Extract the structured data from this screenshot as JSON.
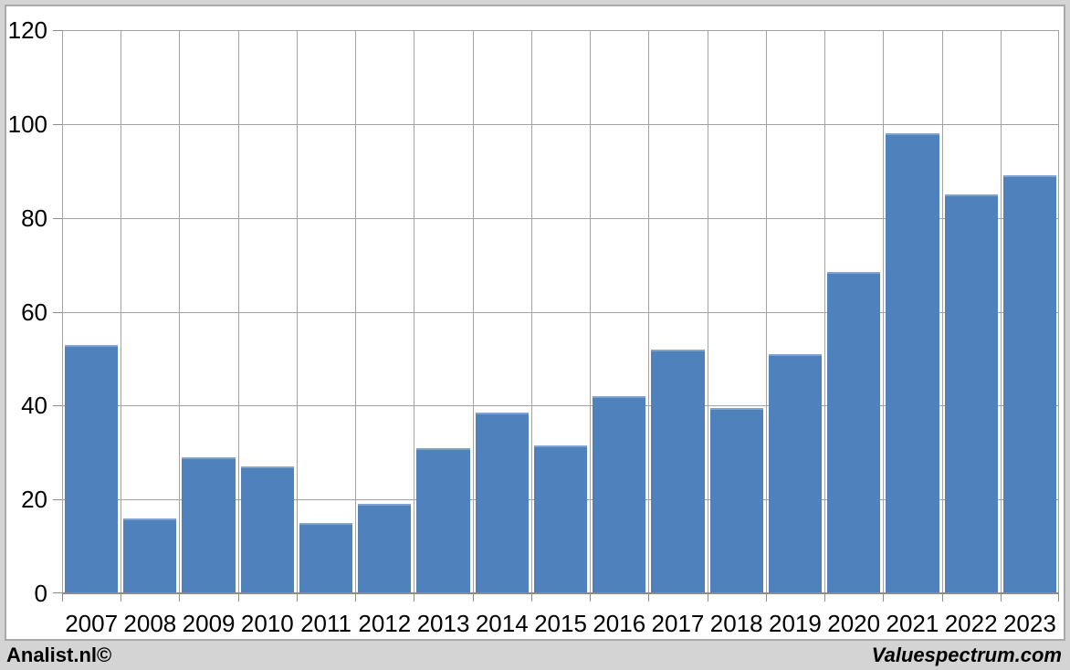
{
  "window": {
    "frame_color": "#d4d4d4",
    "frame_border_color": "#a9a9a9",
    "canvas_background": "#ffffff"
  },
  "chart_data": {
    "type": "bar",
    "title": "",
    "xlabel": "",
    "ylabel": "",
    "categories": [
      "2007",
      "2008",
      "2009",
      "2010",
      "2011",
      "2012",
      "2013",
      "2014",
      "2015",
      "2016",
      "2017",
      "2018",
      "2019",
      "2020",
      "2021",
      "2022",
      "2023"
    ],
    "values": [
      53,
      16,
      29,
      27,
      15,
      19,
      31,
      38.5,
      31.5,
      42,
      52,
      39.5,
      51,
      68.5,
      98,
      85,
      89
    ],
    "ylim": [
      0,
      120
    ],
    "yticks": [
      0,
      20,
      40,
      60,
      80,
      100,
      120
    ],
    "grid": true,
    "legend": false,
    "bar_color": "#4f81bd",
    "bar_top_highlight": "#7fa3cf",
    "gridline_color": "#a3a3a3",
    "axis_line_color": "#8c8c8c",
    "tick_color": "#8c8c8c",
    "tick_label_color": "#000000"
  },
  "footer": {
    "left_text": "Analist.nl©",
    "right_text": "Valuespectrum.com"
  }
}
